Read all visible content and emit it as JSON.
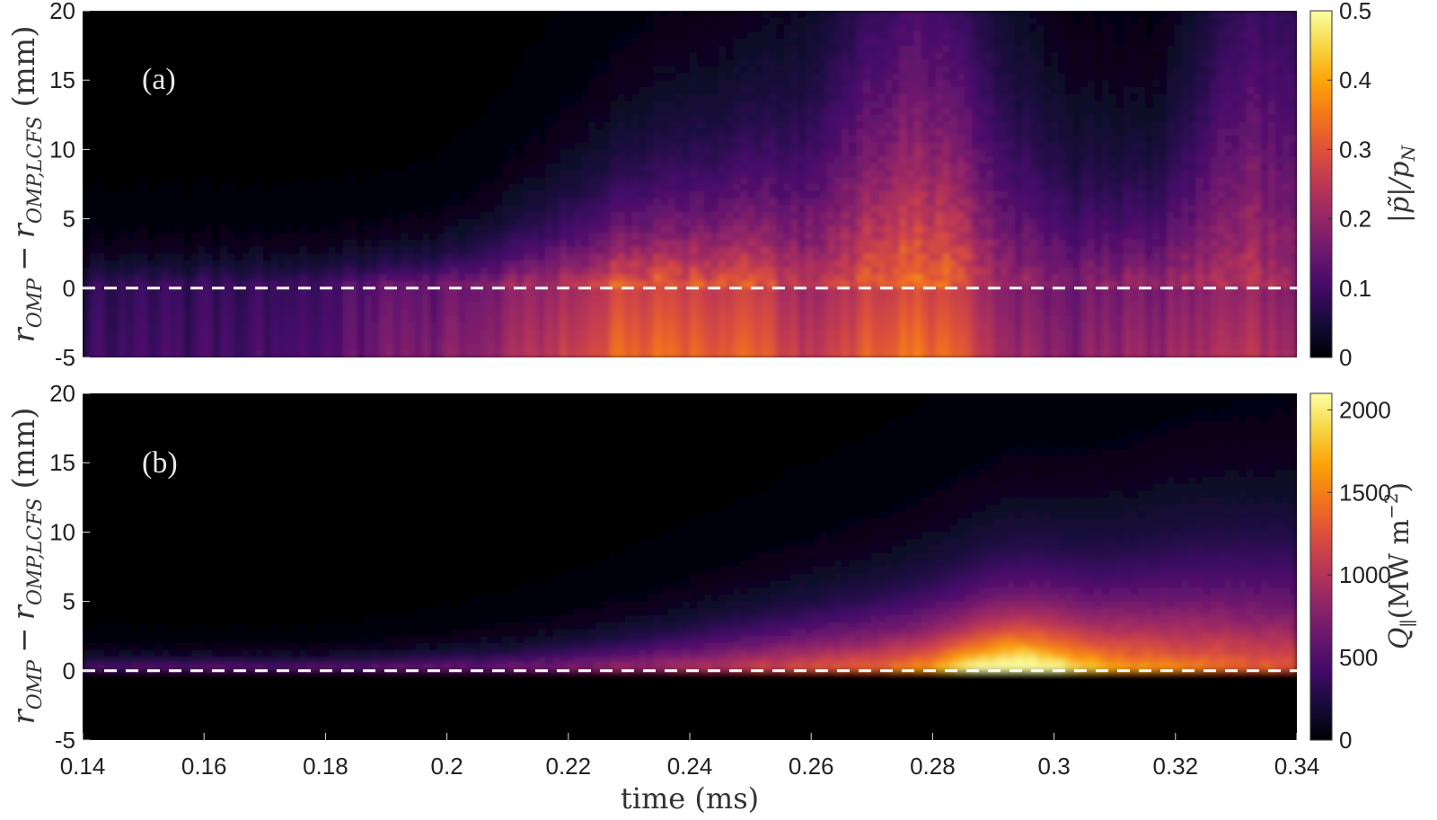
{
  "chart_data": [
    {
      "type": "heatmap",
      "panel_label": "(a)",
      "x_range": [
        0.14,
        0.34
      ],
      "y_range": [
        -5,
        20
      ],
      "x_ticks": [],
      "y_ticks": [
        "20",
        "15",
        "10",
        "5",
        "0",
        "-5"
      ],
      "ylabel": "r_{OMP} − r_{OMP,LCFS} (mm)",
      "ylabel_main": "r",
      "ylabel_sub1": "OMP",
      "ylabel_minus": "−",
      "ylabel_main2": "r",
      "ylabel_sub2": "OMP,LCFS",
      "ylabel_unit": "(mm)",
      "reference_line_y": 0,
      "colorbar": {
        "range": [
          0,
          0.5
        ],
        "ticks": [
          "0",
          "0.1",
          "0.2",
          "0.3",
          "0.4",
          "0.5"
        ],
        "label": "|p̃|/p_N",
        "label_text": "|p̃|/p",
        "label_sub": "N",
        "colormap": "inferno"
      }
    },
    {
      "type": "heatmap",
      "panel_label": "(b)",
      "x_range": [
        0.14,
        0.34
      ],
      "y_range": [
        -5,
        20
      ],
      "x_ticks": [
        "0.14",
        "0.16",
        "0.18",
        "0.2",
        "0.22",
        "0.24",
        "0.26",
        "0.28",
        "0.3",
        "0.32",
        "0.34"
      ],
      "y_ticks": [
        "20",
        "15",
        "10",
        "5",
        "0",
        "-5"
      ],
      "xlabel": "time (ms)",
      "ylabel": "r_{OMP} − r_{OMP,LCFS} (mm)",
      "ylabel_main": "r",
      "ylabel_sub1": "OMP",
      "ylabel_minus": "−",
      "ylabel_main2": "r",
      "ylabel_sub2": "OMP,LCFS",
      "ylabel_unit": "(mm)",
      "reference_line_y": 0,
      "colorbar": {
        "range": [
          0,
          2100
        ],
        "ticks": [
          "0",
          "500",
          "1000",
          "1500",
          "2000"
        ],
        "label": "Q_∥(MW m^-2)",
        "label_text": "Q",
        "label_sub": "∥",
        "label_rest": "(MW m",
        "label_sup": "−2",
        "label_close": ")",
        "colormap": "inferno"
      }
    }
  ]
}
